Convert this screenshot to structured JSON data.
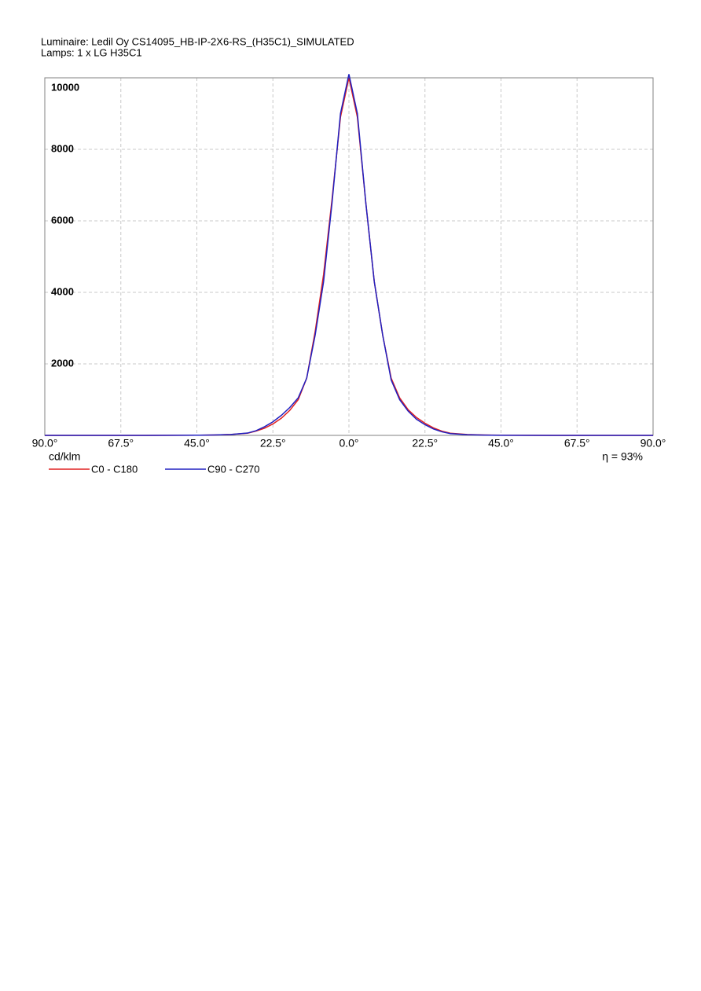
{
  "chart_data": {
    "type": "line",
    "title": "Luminaire: Ledil Oy CS14095_HB-IP-2X6-RS_(H35C1)_SIMULATED",
    "subtitle": "Lamps: 1 x LG H35C1",
    "y_label": "cd/klm",
    "annotation": "η = 93%",
    "x": [
      -90,
      -75,
      -60,
      -45,
      -40,
      -35,
      -30,
      -27.5,
      -25,
      -22.5,
      -20,
      -17.5,
      -15,
      -12.5,
      -10,
      -7.5,
      -5,
      -2.5,
      0,
      2.5,
      5,
      7.5,
      10,
      12.5,
      15,
      17.5,
      20,
      22.5,
      25,
      27.5,
      30,
      35,
      40,
      45,
      60,
      75,
      90
    ],
    "series": [
      {
        "name": "C0 - C180",
        "color": "#e02020",
        "values": [
          0,
          0,
          0,
          5,
          10,
          25,
          60,
          120,
          200,
          320,
          480,
          700,
          1000,
          1600,
          2900,
          4500,
          6600,
          8900,
          10000,
          8900,
          6500,
          4300,
          2800,
          1600,
          1050,
          720,
          500,
          340,
          210,
          120,
          60,
          25,
          10,
          5,
          0,
          0,
          0
        ]
      },
      {
        "name": "C90 - C270",
        "color": "#2020c0",
        "values": [
          0,
          0,
          0,
          5,
          10,
          25,
          65,
          130,
          240,
          380,
          560,
          780,
          1050,
          1600,
          2800,
          4300,
          6500,
          9000,
          10100,
          9000,
          6500,
          4300,
          2800,
          1550,
          1000,
          680,
          450,
          300,
          180,
          100,
          50,
          20,
          8,
          3,
          0,
          0,
          0
        ]
      }
    ],
    "xlim": [
      -90,
      90
    ],
    "xticks": [
      {
        "value": -90,
        "label": "90.0°"
      },
      {
        "value": -67.5,
        "label": "67.5°"
      },
      {
        "value": -45,
        "label": "45.0°"
      },
      {
        "value": -22.5,
        "label": "22.5°"
      },
      {
        "value": 0,
        "label": "0.0°"
      },
      {
        "value": 22.5,
        "label": "22.5°"
      },
      {
        "value": 45,
        "label": "45.0°"
      },
      {
        "value": 67.5,
        "label": "67.5°"
      },
      {
        "value": 90,
        "label": "90.0°"
      }
    ],
    "ylim": [
      0,
      10000
    ],
    "yticks": [
      2000,
      4000,
      6000,
      8000,
      10000
    ],
    "grid": true
  }
}
